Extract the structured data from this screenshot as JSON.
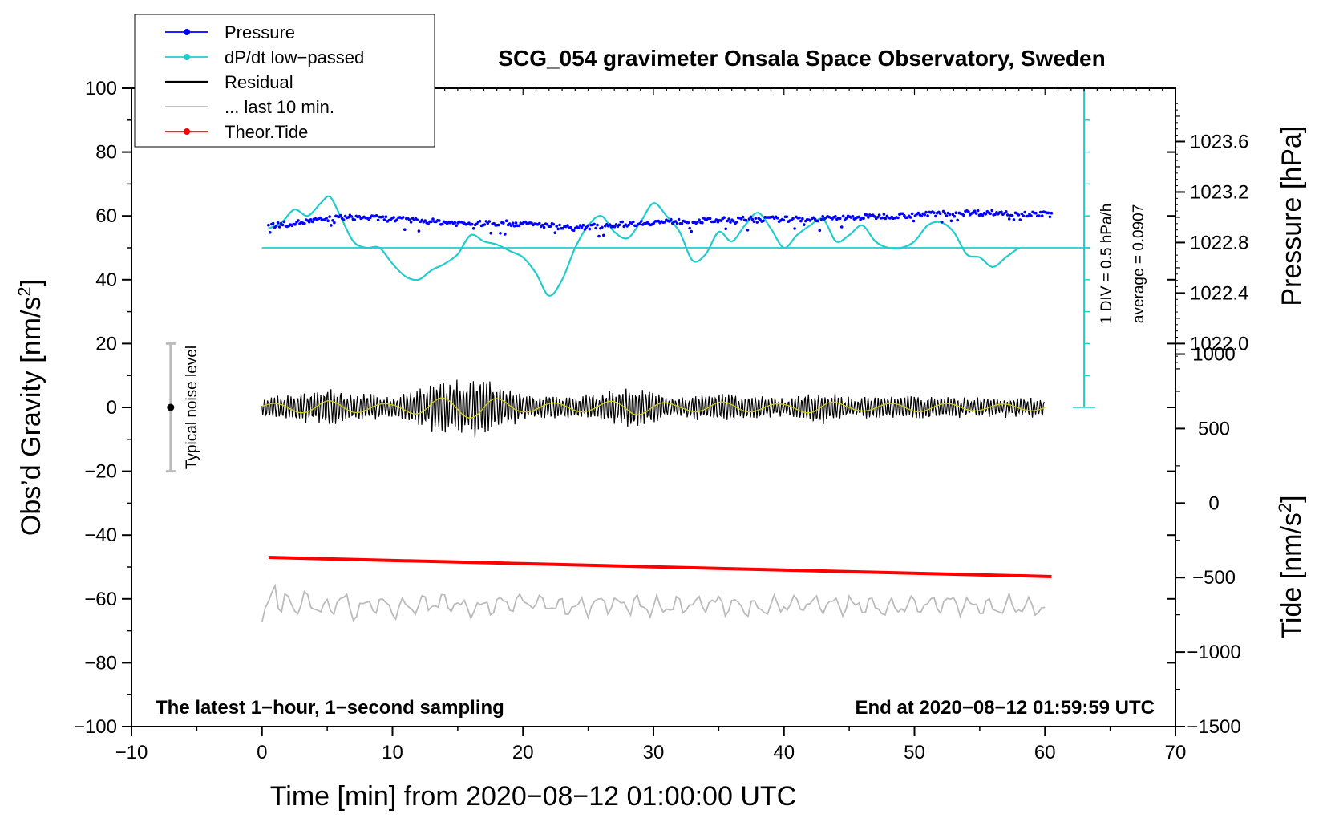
{
  "chart_data": {
    "type": "line",
    "title": "SCG_054 gravimeter Onsala Space Observatory, Sweden",
    "xlabel": "Time [min] from 2020−08−12 01:00:00 UTC",
    "ylabel_main": "Obs’d Gravity [nm/s",
    "ylabel_main_sup": "2",
    "ylabel_main_end": "]",
    "ylabel_pressure": "Pressure [hPa]",
    "ylabel_tide": "Tide [nm/s",
    "ylabel_tide_sup": "2",
    "ylabel_tide_end": "]",
    "xlim": [
      -10,
      70
    ],
    "ylim": [
      -100,
      100
    ],
    "x_ticks": [
      -10,
      0,
      10,
      20,
      30,
      40,
      50,
      60,
      70
    ],
    "x_tick_labels": [
      "−10",
      "0",
      "10",
      "20",
      "30",
      "40",
      "50",
      "60",
      "70"
    ],
    "y_ticks": [
      -100,
      -80,
      -60,
      -40,
      -20,
      0,
      20,
      40,
      60,
      80,
      100
    ],
    "y_tick_labels": [
      "−100",
      "−80",
      "−60",
      "−40",
      "−20",
      "0",
      "20",
      "40",
      "60",
      "80",
      "100"
    ],
    "pressure_ticks": [
      1022.0,
      1022.4,
      1022.8,
      1023.2,
      1023.6
    ],
    "pressure_tick_labels": [
      "1022.0",
      "1022.4",
      "1022.8",
      "1023.2",
      "1023.6"
    ],
    "pressure_axis_map": {
      "value_a": 1022.0,
      "y_a": 20,
      "value_b": 1023.6,
      "y_b": 83.3
    },
    "tide_ticks": [
      -1500,
      -1000,
      -500,
      0,
      500,
      1000
    ],
    "tide_tick_labels": [
      "−1500",
      "−1000",
      "−500",
      "0",
      "500",
      "1000"
    ],
    "tide_axis_map": {
      "value_a": -1500,
      "y_a": -100,
      "value_b": 1000,
      "y_b": 16.7
    },
    "legend": [
      {
        "label": "Pressure",
        "color": "#0000ff",
        "marker": true
      },
      {
        "label": "dP/dt low−passed",
        "color": "#22cccc",
        "marker": true
      },
      {
        "label": "Residual",
        "color": "#000000",
        "marker": false
      },
      {
        "label": "... last 10 min.",
        "color": "#bbbbbb",
        "marker": false
      },
      {
        "label": "Theor.Tide",
        "color": "#ff0000",
        "marker": true
      }
    ],
    "annotations": {
      "left_note": "The latest 1−hour, 1−second sampling",
      "right_note": "End at 2020−08−12 01:59:59 UTC",
      "noise_label": "Typical noise level",
      "div_label": "1 DIV = 0.5 hPa/h",
      "average_label": "average = 0.0907"
    },
    "noise_bar": {
      "x": -7,
      "center": 0,
      "low": -20,
      "high": 20
    },
    "dpdt_scale": {
      "x": 63,
      "y_min": 0,
      "y_max": 100,
      "baseline": 50,
      "divisions": 10
    },
    "series": [
      {
        "name": "Pressure",
        "color": "#0000ff",
        "x": [
          0.5,
          2,
          3,
          4,
          5,
          6,
          8,
          10,
          12,
          14,
          16,
          18,
          20,
          22,
          24,
          25,
          26,
          28,
          30,
          32,
          34,
          36,
          38,
          40,
          42,
          44,
          46,
          48,
          50,
          52,
          54,
          56,
          58,
          60
        ],
        "y": [
          57,
          57.5,
          58,
          58.5,
          59,
          59.5,
          59.5,
          59,
          58.5,
          58,
          57.5,
          57.8,
          57.5,
          57,
          56.2,
          56.5,
          57,
          57.5,
          58,
          58.3,
          58.5,
          58.8,
          59,
          59,
          59,
          59.3,
          59.6,
          60,
          60.3,
          60.8,
          61,
          61,
          60.8,
          60.5
        ]
      },
      {
        "name": "dP/dt low-passed",
        "color": "#22cccc",
        "x": [
          0.5,
          1.5,
          2.5,
          3.5,
          4.5,
          5.2,
          6.0,
          7.0,
          8.0,
          9.0,
          10.0,
          11.0,
          12.0,
          13.0,
          14.0,
          15.0,
          16.0,
          17.0,
          18.0,
          19.0,
          20.0,
          21.0,
          22.0,
          23.0,
          24.0,
          25.0,
          26.0,
          27.0,
          28.0,
          29.0,
          30.0,
          31.0,
          32.0,
          33.0,
          34.0,
          35.0,
          36.0,
          37.0,
          38.0,
          39.0,
          40.0,
          41.0,
          42.0,
          43.0,
          44.0,
          45.0,
          46.0,
          47.0,
          48.0,
          49.0,
          50.0,
          51.0,
          52.0,
          53.0,
          54.0,
          55.0,
          56.0,
          57.0,
          58.0
        ],
        "y": [
          56,
          58,
          62,
          60,
          64,
          66,
          60,
          52,
          50,
          50,
          45,
          41,
          40,
          43,
          45,
          48,
          54,
          52,
          51,
          49,
          47,
          42,
          35,
          40,
          50,
          57,
          60,
          55,
          53,
          58,
          64,
          60,
          55,
          46,
          48,
          55,
          52,
          57,
          61,
          56,
          50,
          54,
          57,
          59,
          52,
          54,
          57,
          52,
          50,
          50,
          52,
          57,
          58,
          55,
          48,
          47,
          44,
          47,
          50
        ]
      },
      {
        "name": "Residual",
        "color": "#000000",
        "x": [
          0,
          5,
          10,
          13,
          17,
          20,
          25,
          28.5,
          32,
          35,
          40,
          43,
          45,
          50,
          55,
          60
        ],
        "y": [
          0,
          0,
          0,
          0,
          0,
          0,
          0,
          0,
          0,
          0,
          0,
          0,
          0,
          0,
          0,
          0
        ],
        "amplitude": [
          3,
          6,
          3,
          8,
          10,
          4,
          4,
          7,
          3,
          5,
          3,
          6,
          3,
          4,
          3,
          3
        ]
      },
      {
        "name": "Residual smoothed",
        "color": "#cccc22",
        "x": [
          0,
          10,
          20,
          30,
          40,
          50,
          60
        ],
        "y": [
          0,
          0,
          0,
          0,
          0,
          0,
          0
        ]
      },
      {
        "name": "... last 10 min.",
        "color": "#bbbbbb",
        "x": [
          0,
          0.5,
          1.0,
          1.5,
          2.0,
          2.5,
          3,
          4,
          5,
          6,
          7,
          8,
          9,
          10,
          12,
          14,
          16,
          18,
          20,
          22,
          24,
          26,
          28,
          30,
          32,
          34,
          36,
          38,
          40,
          42,
          44,
          46,
          48,
          50,
          52,
          54,
          56,
          58,
          60
        ],
        "y": [
          -68,
          -62,
          -55,
          -64,
          -60,
          -63,
          -61,
          -62,
          -63,
          -60,
          -64,
          -62,
          -61,
          -63,
          -62,
          -61,
          -63,
          -62,
          -61,
          -62,
          -63,
          -61,
          -62,
          -63,
          -62,
          -61,
          -62,
          -63,
          -62,
          -61,
          -62,
          -62,
          -63,
          -62,
          -61,
          -62,
          -63,
          -62,
          -63
        ]
      },
      {
        "name": "Theor.Tide",
        "color": "#ff0000",
        "x": [
          0.5,
          60.5
        ],
        "y": [
          -47,
          -53
        ]
      }
    ]
  }
}
